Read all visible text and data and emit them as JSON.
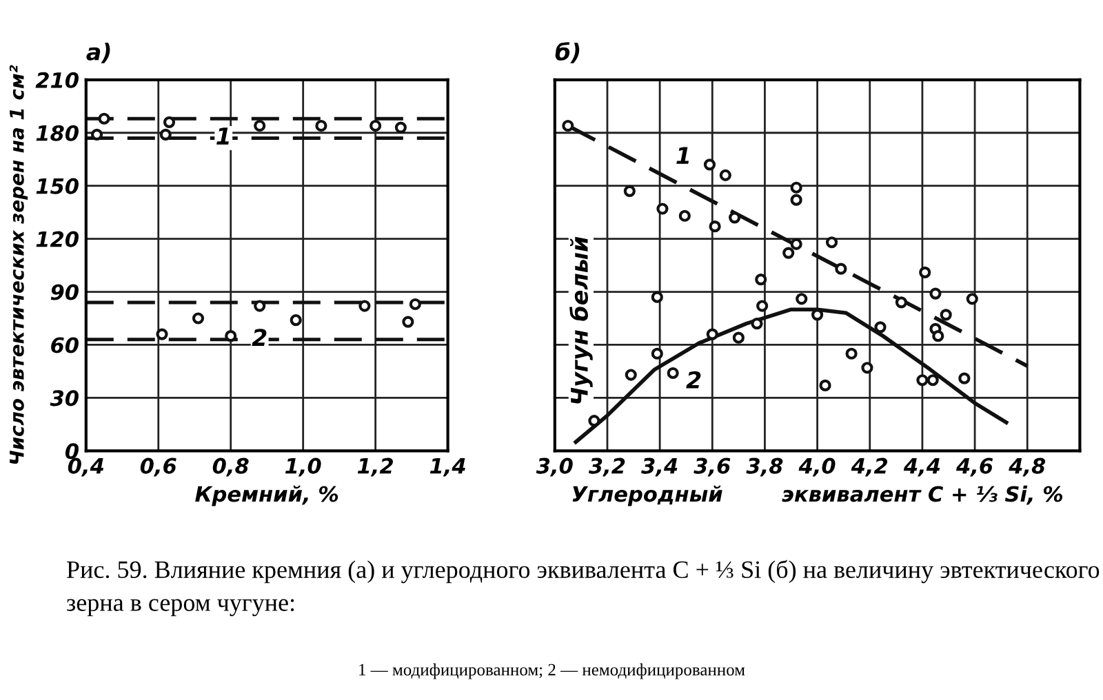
{
  "chart_data": [
    {
      "type": "scatter",
      "title": "а)",
      "xlabel": "Кремний, %",
      "ylabel": "Число эвтектических зерен на 1 см²",
      "xlim": [
        0.4,
        1.4
      ],
      "ylim": [
        0,
        210
      ],
      "xticks": [
        {
          "value": 0.4,
          "label": "0,4"
        },
        {
          "value": 0.6,
          "label": "0,6"
        },
        {
          "value": 0.8,
          "label": "0,8"
        },
        {
          "value": 1.0,
          "label": "1,0"
        },
        {
          "value": 1.2,
          "label": "1,2"
        },
        {
          "value": 1.4,
          "label": "1,4"
        }
      ],
      "yticks": [
        0,
        30,
        60,
        90,
        120,
        150,
        180,
        210
      ],
      "grid": true,
      "marker": "circle",
      "series": [
        {
          "color": "#111111",
          "x": [
            0.45,
            0.43,
            0.63,
            0.62,
            0.88,
            1.05,
            1.2,
            1.27
          ],
          "values": [
            188,
            179,
            186,
            179,
            184,
            184,
            184,
            183
          ]
        },
        {
          "color": "#111111",
          "x": [
            0.61,
            0.71,
            0.8,
            0.88,
            0.98,
            1.17,
            1.31,
            1.29
          ],
          "values": [
            66,
            75,
            65,
            82,
            74,
            82,
            83,
            73
          ]
        }
      ],
      "ref_lines": [
        {
          "axis": "y",
          "value": 188,
          "line_style": "dashed",
          "color": "#111111"
        },
        {
          "axis": "y",
          "value": 177,
          "line_style": "dashed",
          "color": "#111111"
        },
        {
          "axis": "y",
          "value": 84,
          "line_style": "dashed",
          "color": "#111111"
        },
        {
          "axis": "y",
          "value": 63,
          "line_style": "dashed",
          "color": "#111111"
        }
      ],
      "annotations": [
        {
          "text": "1",
          "x": 0.78,
          "y": 177
        },
        {
          "text": "2",
          "x": 0.88,
          "y": 63
        },
        "Рис. 59. Влияние кремния (а) и углеродного эквивалента C + ⅓ Si (б) на величину эвтектического зерна в сером чугуне:",
        "1 — модифицированном; 2 — немодифицированном"
      ]
    },
    {
      "type": "scatter",
      "title": "б)",
      "xlabel": "Углеродный        эквивалент C + ⅓ Si, %",
      "xlim": [
        3.0,
        5.0
      ],
      "ylim": [
        0,
        210
      ],
      "tick_labels": "x",
      "xticks": [
        {
          "value": 3.0,
          "label": "3,0"
        },
        {
          "value": 3.2,
          "label": "3,2"
        },
        {
          "value": 3.4,
          "label": "3,4"
        },
        {
          "value": 3.6,
          "label": "3,6"
        },
        {
          "value": 3.8,
          "label": "3,8"
        },
        {
          "value": 4.0,
          "label": "4,0"
        },
        {
          "value": 4.2,
          "label": "4,2"
        },
        {
          "value": 4.4,
          "label": "4,4"
        },
        {
          "value": 4.6,
          "label": "4,6"
        },
        {
          "value": 4.8,
          "label": "4,8"
        }
      ],
      "yticks": [
        0,
        30,
        60,
        90,
        120,
        150,
        180,
        210
      ],
      "grid": true,
      "series": [
        {
          "marker": "circle",
          "color": "#111111",
          "x": [
            3.05,
            3.285,
            3.41,
            3.495,
            3.59,
            3.65,
            3.61,
            3.685,
            3.92,
            3.92,
            3.92,
            3.89,
            4.055,
            4.09,
            3.785,
            3.79,
            3.94,
            4.0,
            3.39,
            3.39,
            3.29,
            3.45,
            3.6,
            3.7,
            3.77,
            4.03,
            4.13,
            4.19,
            4.24,
            4.32,
            4.41,
            4.45,
            4.45,
            4.46,
            4.49,
            4.4,
            4.44,
            4.56,
            4.59,
            3.15
          ],
          "values": [
            184,
            147,
            137,
            133,
            162,
            156,
            127,
            132,
            149,
            142,
            117,
            112,
            118,
            103,
            97,
            82,
            86,
            77,
            87,
            55,
            43,
            44,
            66,
            64,
            72,
            37,
            55,
            47,
            70,
            84,
            101,
            89,
            69,
            65,
            77,
            40,
            40,
            41,
            86,
            17
          ]
        },
        {
          "type": "line",
          "color": "#111111",
          "line_style": "dashed",
          "x": [
            3.05,
            4.8
          ],
          "values": [
            184,
            48
          ]
        },
        {
          "type": "line",
          "color": "#111111",
          "line_style": "solid",
          "x": [
            3.08,
            3.2,
            3.38,
            3.55,
            3.73,
            3.9,
            4.0,
            4.11,
            4.25,
            4.43,
            4.6,
            4.72
          ],
          "values": [
            5,
            20,
            46,
            61,
            72,
            80,
            80,
            78,
            65,
            46,
            27,
            16
          ]
        }
      ],
      "annotations": [
        {
          "text": "1",
          "x": 3.49,
          "y": 166
        },
        {
          "text": "2",
          "x": 3.53,
          "y": 39
        },
        "Чугун белый"
      ]
    }
  ]
}
